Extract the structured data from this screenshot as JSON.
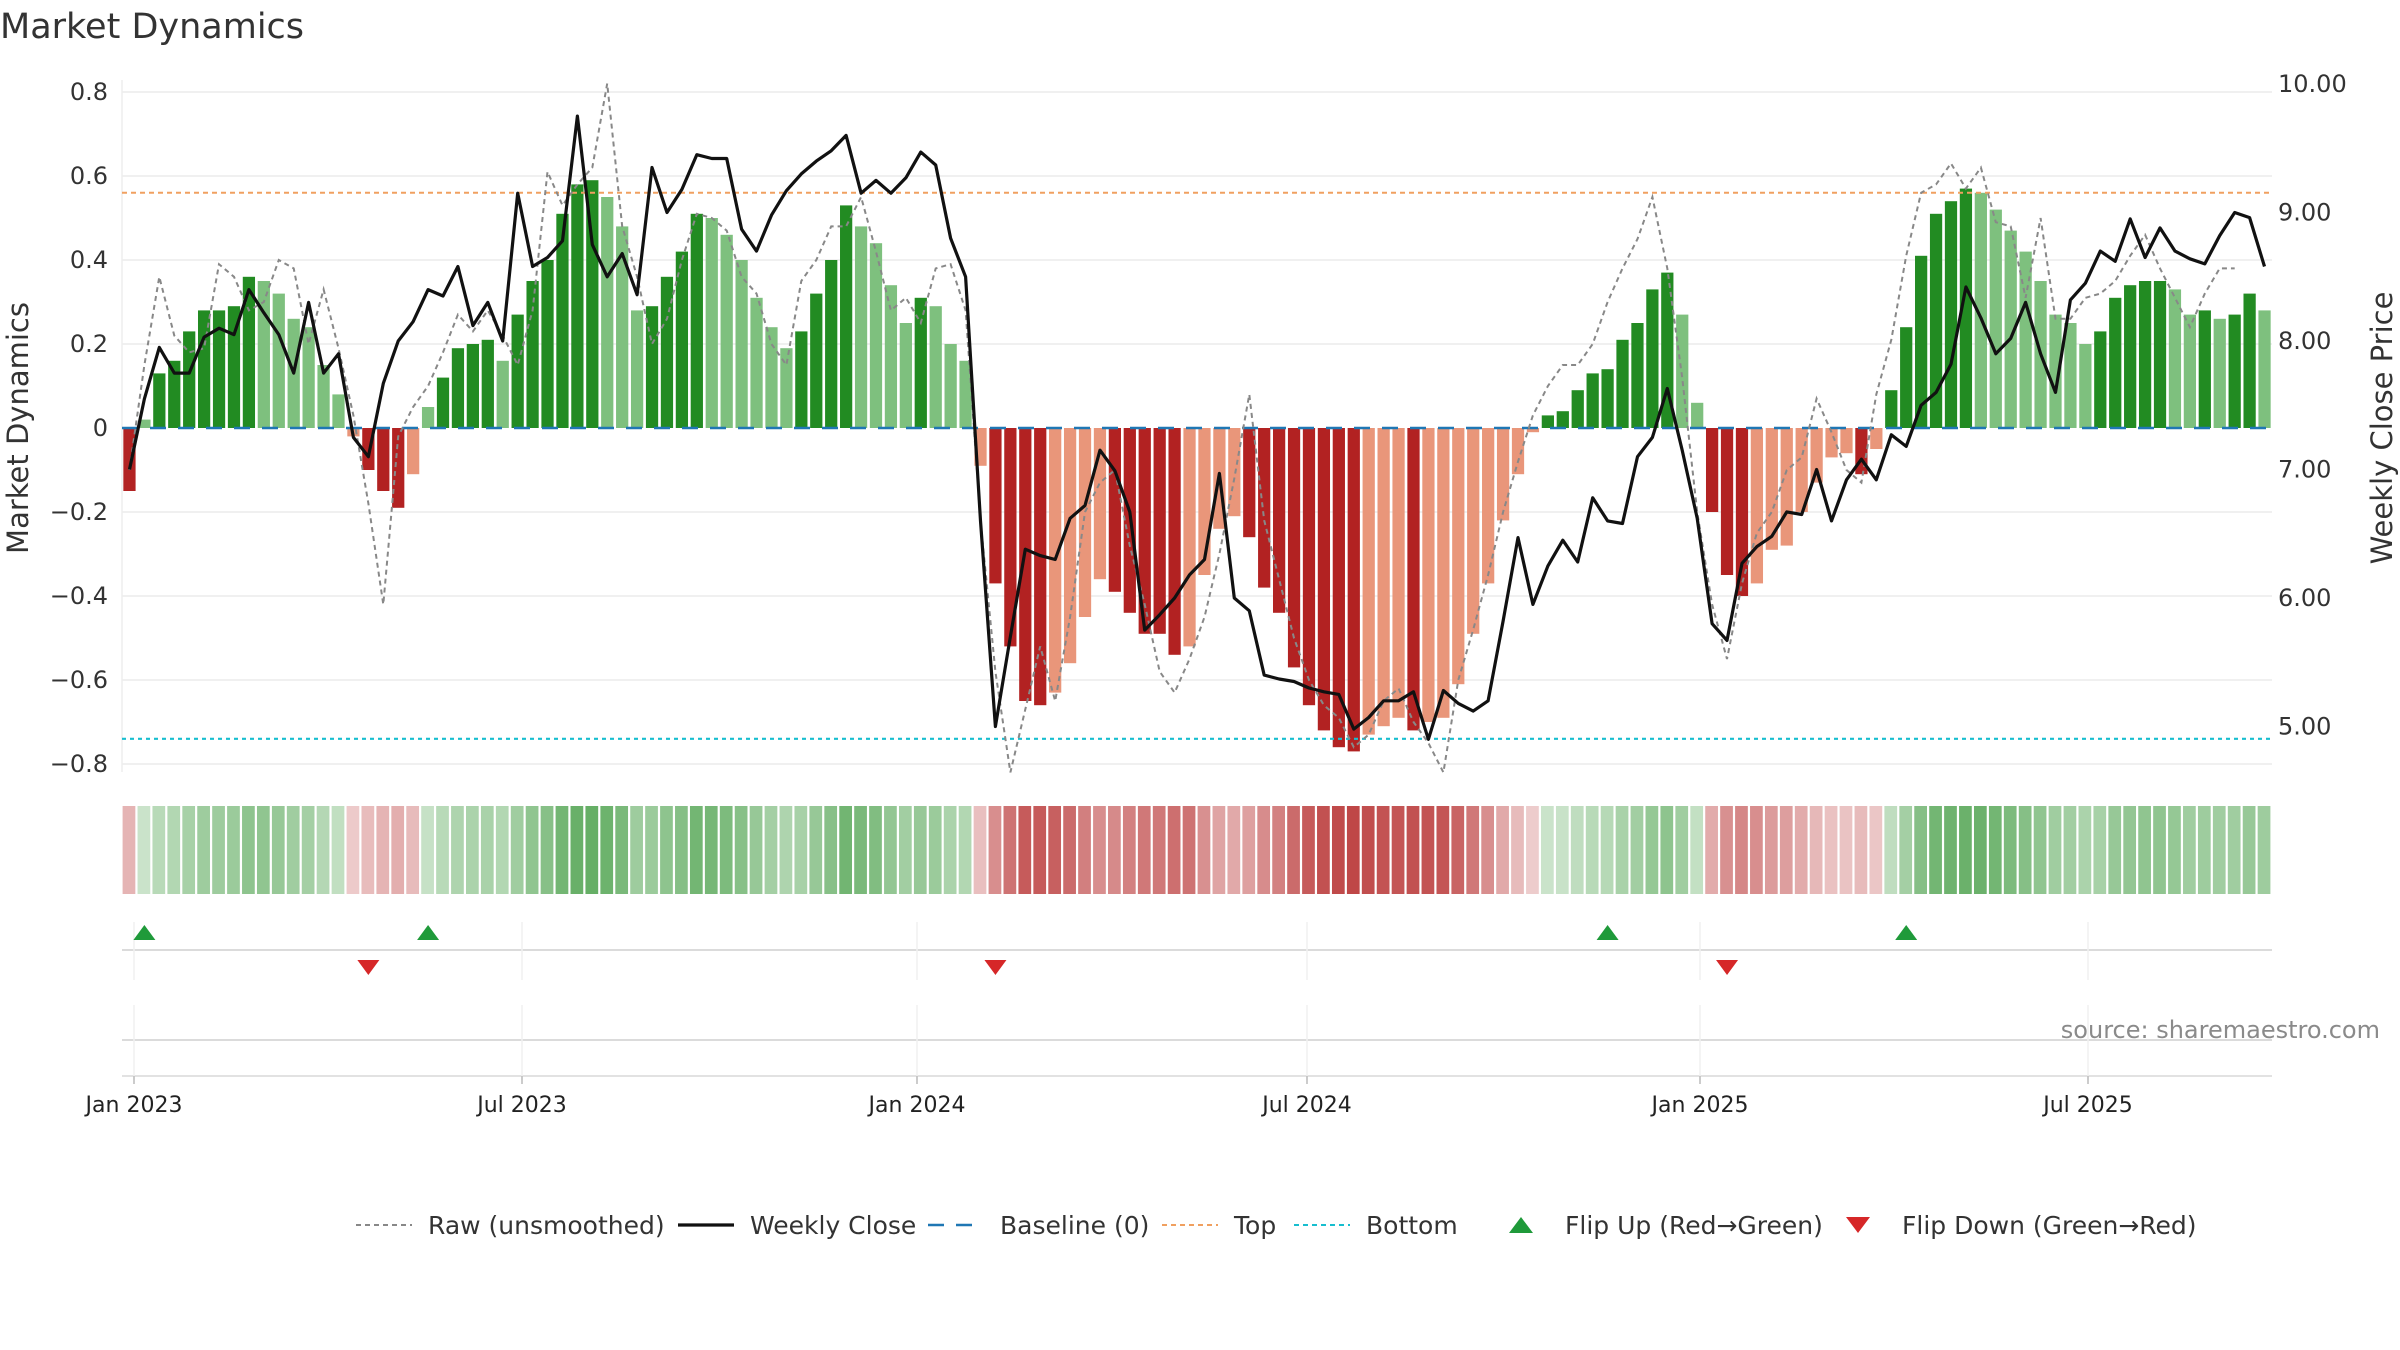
{
  "chart_data": {
    "type": "bar",
    "title": "Market Dynamics",
    "ylabel": "Market Dynamics",
    "y2label": "Weekly Close Price",
    "ylim": [
      -0.82,
      0.82
    ],
    "y2lim": [
      4.6,
      10.0
    ],
    "yticks": [
      "0.8",
      "0.6",
      "0.4",
      "0.2",
      "0",
      "−0.2",
      "−0.4",
      "−0.6",
      "−0.8"
    ],
    "y2ticks": [
      "10.00",
      "9.00",
      "8.00",
      "7.00",
      "6.00",
      "5.00"
    ],
    "xticks": [
      "Jan 2023",
      "Jul 2023",
      "Jan 2024",
      "Jul 2024",
      "Jan 2025",
      "Jul 2025"
    ],
    "top_threshold": 0.56,
    "bottom_threshold": -0.74,
    "baseline": 0,
    "dynamics": [
      -0.15,
      0.02,
      0.13,
      0.16,
      0.23,
      0.28,
      0.28,
      0.29,
      0.36,
      0.35,
      0.32,
      0.26,
      0.24,
      0.15,
      0.08,
      -0.02,
      -0.1,
      -0.15,
      -0.19,
      -0.11,
      0.05,
      0.12,
      0.19,
      0.2,
      0.21,
      0.16,
      0.27,
      0.35,
      0.4,
      0.51,
      0.58,
      0.59,
      0.55,
      0.48,
      0.28,
      0.29,
      0.36,
      0.42,
      0.51,
      0.5,
      0.46,
      0.4,
      0.31,
      0.24,
      0.19,
      0.23,
      0.32,
      0.4,
      0.53,
      0.48,
      0.44,
      0.34,
      0.25,
      0.31,
      0.29,
      0.2,
      0.16,
      -0.09,
      -0.37,
      -0.52,
      -0.65,
      -0.66,
      -0.63,
      -0.56,
      -0.45,
      -0.36,
      -0.39,
      -0.44,
      -0.49,
      -0.49,
      -0.54,
      -0.52,
      -0.35,
      -0.24,
      -0.21,
      -0.26,
      -0.38,
      -0.44,
      -0.57,
      -0.66,
      -0.72,
      -0.76,
      -0.77,
      -0.73,
      -0.71,
      -0.69,
      -0.72,
      -0.7,
      -0.69,
      -0.61,
      -0.49,
      -0.37,
      -0.22,
      -0.11,
      -0.01,
      0.03,
      0.04,
      0.09,
      0.13,
      0.14,
      0.21,
      0.25,
      0.33,
      0.37,
      0.27,
      0.06,
      -0.2,
      -0.35,
      -0.4,
      -0.37,
      -0.29,
      -0.28,
      -0.2,
      -0.13,
      -0.07,
      -0.06,
      -0.11,
      -0.05,
      0.09,
      0.24,
      0.41,
      0.51,
      0.54,
      0.57,
      0.56,
      0.52,
      0.47,
      0.42,
      0.35,
      0.27,
      0.25,
      0.2,
      0.23,
      0.31,
      0.34,
      0.35,
      0.35,
      0.33,
      0.27,
      0.28,
      0.26,
      0.27,
      0.32,
      0.28
    ],
    "raw": [
      -0.1,
      0.15,
      0.36,
      0.22,
      0.18,
      0.19,
      0.39,
      0.36,
      0.28,
      0.3,
      0.4,
      0.38,
      0.2,
      0.33,
      0.19,
      0.03,
      -0.18,
      -0.42,
      -0.02,
      0.05,
      0.1,
      0.18,
      0.27,
      0.23,
      0.28,
      0.22,
      0.15,
      0.28,
      0.61,
      0.53,
      0.58,
      0.62,
      0.82,
      0.48,
      0.36,
      0.2,
      0.26,
      0.4,
      0.51,
      0.5,
      0.47,
      0.36,
      0.32,
      0.2,
      0.15,
      0.35,
      0.4,
      0.48,
      0.48,
      0.55,
      0.42,
      0.28,
      0.31,
      0.25,
      0.38,
      0.39,
      0.28,
      -0.22,
      -0.58,
      -0.82,
      -0.67,
      -0.52,
      -0.65,
      -0.45,
      -0.2,
      -0.13,
      -0.1,
      -0.28,
      -0.42,
      -0.58,
      -0.63,
      -0.55,
      -0.45,
      -0.3,
      -0.12,
      0.08,
      -0.22,
      -0.36,
      -0.5,
      -0.6,
      -0.66,
      -0.69,
      -0.76,
      -0.73,
      -0.65,
      -0.62,
      -0.7,
      -0.75,
      -0.82,
      -0.6,
      -0.48,
      -0.35,
      -0.2,
      -0.08,
      0.03,
      0.1,
      0.15,
      0.15,
      0.2,
      0.3,
      0.38,
      0.45,
      0.55,
      0.38,
      0.12,
      -0.2,
      -0.42,
      -0.55,
      -0.37,
      -0.25,
      -0.2,
      -0.1,
      -0.07,
      0.07,
      -0.01,
      -0.1,
      -0.13,
      0.08,
      0.21,
      0.41,
      0.56,
      0.58,
      0.63,
      0.57,
      0.62,
      0.49,
      0.48,
      0.31,
      0.5,
      0.26,
      0.26,
      0.31,
      0.32,
      0.35,
      0.41,
      0.46,
      0.38,
      0.31,
      0.24,
      0.32,
      0.38,
      0.38
    ],
    "close": [
      7.0,
      7.55,
      7.95,
      7.75,
      7.75,
      8.03,
      8.1,
      8.05,
      8.4,
      8.22,
      8.05,
      7.75,
      8.3,
      7.75,
      7.9,
      7.25,
      7.1,
      7.67,
      8.0,
      8.15,
      8.4,
      8.35,
      8.58,
      8.12,
      8.3,
      8.0,
      9.15,
      8.58,
      8.65,
      8.78,
      9.75,
      8.75,
      8.5,
      8.68,
      8.36,
      9.35,
      9.0,
      9.18,
      9.45,
      9.42,
      9.42,
      8.87,
      8.7,
      8.98,
      9.17,
      9.3,
      9.4,
      9.48,
      9.6,
      9.15,
      9.25,
      9.15,
      9.27,
      9.47,
      9.37,
      8.8,
      8.5,
      6.6,
      5.0,
      5.7,
      6.38,
      6.33,
      6.3,
      6.62,
      6.72,
      7.15,
      6.99,
      6.67,
      5.75,
      5.87,
      6.0,
      6.18,
      6.3,
      6.97,
      6.0,
      5.9,
      5.4,
      5.37,
      5.35,
      5.3,
      5.27,
      5.25,
      4.98,
      5.07,
      5.2,
      5.2,
      5.27,
      4.9,
      5.28,
      5.18,
      5.12,
      5.2,
      5.82,
      6.47,
      5.95,
      6.25,
      6.45,
      6.28,
      6.78,
      6.6,
      6.58,
      7.1,
      7.25,
      7.63,
      7.15,
      6.62,
      5.8,
      5.67,
      6.27,
      6.4,
      6.48,
      6.67,
      6.65,
      7.0,
      6.6,
      6.92,
      7.08,
      6.92,
      7.27,
      7.18,
      7.5,
      7.6,
      7.82,
      8.42,
      8.18,
      7.9,
      8.02,
      8.3,
      7.9,
      7.6,
      8.32,
      8.45,
      8.7,
      8.62,
      8.95,
      8.65,
      8.88,
      8.7,
      8.64,
      8.6,
      8.82,
      9.0,
      8.96,
      8.58
    ],
    "legend": [
      {
        "label": "Raw (unsmoothed)",
        "style": "dotted-line",
        "color": "#888888"
      },
      {
        "label": "Weekly Close",
        "style": "solid-line",
        "color": "#111111"
      },
      {
        "label": "Baseline (0)",
        "style": "dashed-line",
        "color": "#1f77b4"
      },
      {
        "label": "Top",
        "style": "dotted-line",
        "color": "#f0a060"
      },
      {
        "label": "Bottom",
        "style": "dotted-line",
        "color": "#17becf"
      },
      {
        "label": "Flip Up (Red→Green)",
        "style": "triangle-up",
        "color": "#1f9a3a"
      },
      {
        "label": "Flip Down (Green→Red)",
        "style": "triangle-down",
        "color": "#d62728"
      }
    ],
    "flips_up": [
      1,
      20,
      99,
      119
    ],
    "flips_down": [
      16,
      58,
      107
    ],
    "colors": {
      "green_strong": "#228b22",
      "green_light": "#7ec07e",
      "red_strong": "#b22222",
      "red_light": "#e9967a",
      "top": "#f0a060",
      "bottom": "#17becf",
      "baseline": "#1f77b4"
    },
    "source": "source: sharemaestro.com"
  }
}
